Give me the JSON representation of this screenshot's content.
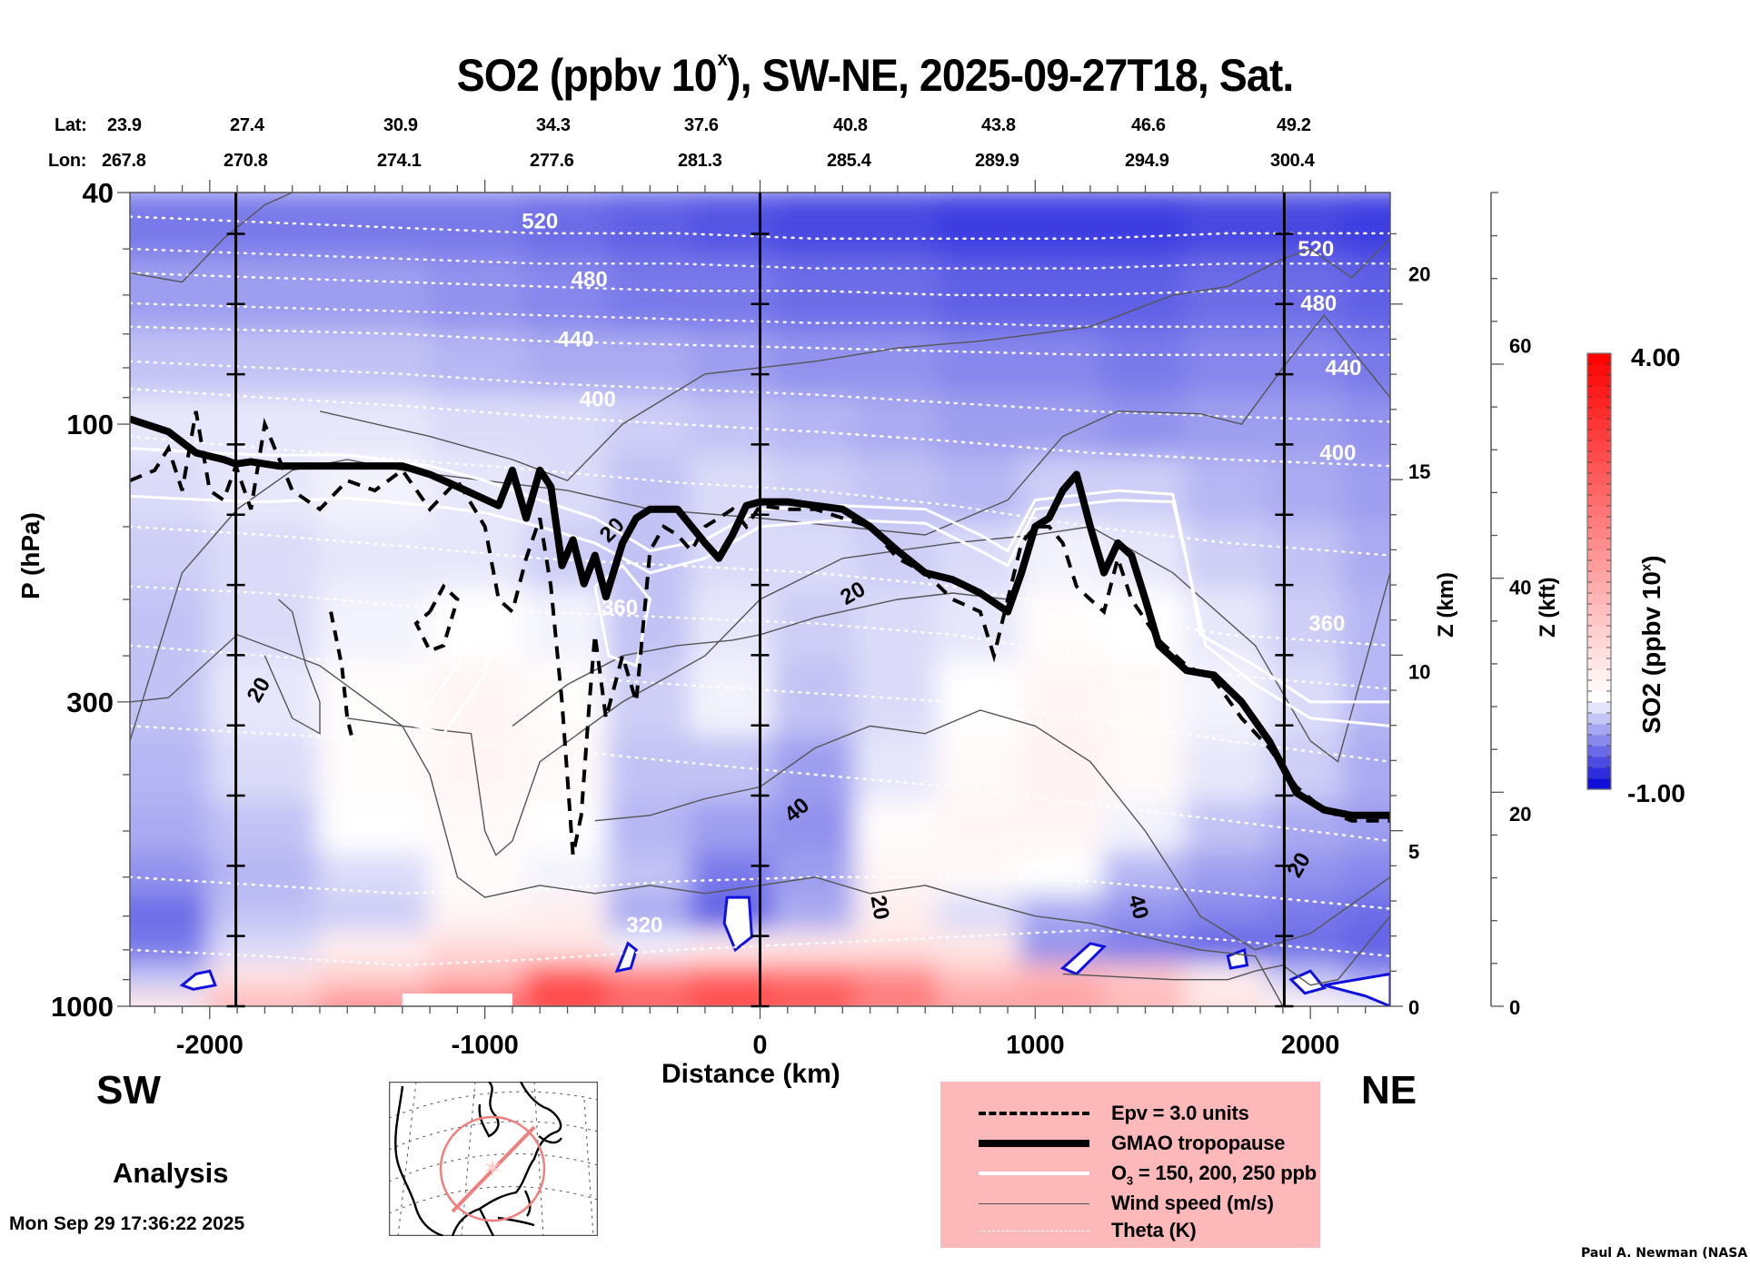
{
  "header": {
    "title_main": "SO2 (ppbv 10",
    "title_sup": "x",
    "title_rest": "), SW-NE, 2025-09-27T18, Sat.",
    "lat_label": "Lat:",
    "lon_label": "Lon:",
    "lat_values": [
      "23.9",
      "27.4",
      "30.9",
      "34.3",
      "37.6",
      "40.8",
      "43.8",
      "46.6",
      "49.2"
    ],
    "lon_values": [
      "267.8",
      "270.8",
      "274.1",
      "277.6",
      "281.3",
      "285.4",
      "289.9",
      "294.9",
      "300.4"
    ]
  },
  "labels": {
    "sw": "SW",
    "ne": "NE",
    "analysis": "Analysis",
    "timestamp": "Mon Sep 29 17:36:22 2025",
    "credit": "Paul A. Newman (NASA"
  },
  "legend": {
    "items": [
      {
        "label": "Epv = 3.0 units",
        "style": "dashed-thick-black"
      },
      {
        "label": "GMAO tropopause",
        "style": "solid-heavy-black"
      },
      {
        "label_main": "O",
        "label_sub": "3",
        "label_rest": " = 150, 200, 250 ppb",
        "style": "solid-white"
      },
      {
        "label": "Wind speed (m/s)",
        "style": "solid-thin-gray"
      },
      {
        "label": "Theta (K)",
        "style": "dotted-white"
      }
    ],
    "background": "#fdb9ba"
  },
  "colors": {
    "low": "#0000e0",
    "mid": "#ffffff",
    "high": "#ff0000",
    "wind": "#555555",
    "tropopause": "#000000",
    "ozone": "#ffffff",
    "theta": "#ffffff",
    "map_track": "#f08080"
  },
  "chart_data": {
    "type": "heatmap",
    "title": "SO2 (ppbv 10^x), SW-NE, 2025-09-27T18, Sat.",
    "xlabel": "Distance (km)",
    "ylabel": "P (hPa)",
    "y2label": "Z (km)",
    "y3label": "Z (kft)",
    "xlim": [
      -2290,
      2290
    ],
    "ylim": [
      1000,
      40
    ],
    "yscale": "log",
    "grid": false,
    "x_ticks": [
      -2000,
      -1000,
      0,
      1000,
      2000
    ],
    "x_tick_labels": [
      "-2000",
      "-1000",
      "0",
      "1000",
      "2000"
    ],
    "y_ticks": [
      40,
      100,
      300,
      1000
    ],
    "y_tick_labels": [
      "40",
      "100",
      "300",
      "1000"
    ],
    "z_km_ticks": [
      0,
      5,
      10,
      15,
      20
    ],
    "z_km_pressure": [
      1000,
      540,
      265,
      120,
      55
    ],
    "z_kft_ticks": [
      0,
      20,
      40,
      60
    ],
    "z_kft_pressure": [
      1000,
      465,
      190,
      73
    ],
    "reference_lines_km": [
      -1905,
      0,
      1905
    ],
    "colorbar": {
      "label_main": "SO2 (ppbv 10",
      "label_sup": "x",
      "label_rest": ")",
      "min": -1.0,
      "max": 4.0,
      "min_label": "-1.00",
      "max_label": "4.00",
      "levels": 40,
      "placement": "right"
    },
    "so2_field": {
      "x": [
        -2200,
        -1800,
        -1400,
        -1000,
        -700,
        -400,
        -100,
        200,
        500,
        800,
        1100,
        1400,
        1700,
        2000,
        2250
      ],
      "p": [
        45,
        60,
        80,
        100,
        130,
        170,
        220,
        300,
        400,
        500,
        600,
        700,
        800,
        900,
        1000
      ],
      "values": [
        [
          -0.5,
          -0.5,
          -0.5,
          -0.5,
          -0.55,
          -0.6,
          -0.65,
          -0.7,
          -0.7,
          -0.75,
          -0.75,
          -0.75,
          -0.7,
          -0.7,
          -0.75
        ],
        [
          -0.35,
          -0.35,
          -0.35,
          -0.4,
          -0.45,
          -0.5,
          -0.5,
          -0.55,
          -0.55,
          -0.6,
          -0.6,
          -0.6,
          -0.55,
          -0.55,
          -0.6
        ],
        [
          -0.2,
          -0.2,
          -0.2,
          -0.25,
          -0.3,
          -0.3,
          -0.35,
          -0.4,
          -0.4,
          -0.45,
          -0.45,
          -0.5,
          -0.45,
          -0.45,
          -0.5
        ],
        [
          -0.05,
          -0.05,
          -0.05,
          -0.1,
          -0.1,
          -0.15,
          -0.2,
          -0.25,
          -0.3,
          -0.35,
          -0.35,
          -0.4,
          -0.35,
          -0.35,
          -0.4
        ],
        [
          -0.1,
          -0.05,
          0.0,
          -0.05,
          -0.1,
          -0.2,
          -0.1,
          -0.15,
          -0.2,
          -0.25,
          -0.15,
          -0.15,
          -0.25,
          -0.3,
          -0.35
        ],
        [
          -0.15,
          -0.1,
          -0.05,
          -0.05,
          -0.15,
          -0.2,
          -0.1,
          -0.1,
          -0.15,
          -0.1,
          0.0,
          -0.05,
          -0.15,
          -0.2,
          -0.3
        ],
        [
          -0.2,
          -0.1,
          0.0,
          0.05,
          0.0,
          -0.2,
          -0.05,
          -0.15,
          -0.1,
          -0.05,
          0.1,
          0.05,
          -0.05,
          -0.15,
          -0.25
        ],
        [
          -0.2,
          -0.05,
          0.1,
          0.2,
          0.1,
          -0.15,
          0.0,
          -0.2,
          -0.1,
          0.05,
          0.2,
          0.15,
          0.0,
          -0.1,
          -0.25
        ],
        [
          -0.25,
          -0.1,
          0.1,
          0.2,
          0.15,
          -0.2,
          -0.2,
          -0.35,
          -0.05,
          0.15,
          0.25,
          0.15,
          -0.05,
          -0.15,
          -0.3
        ],
        [
          -0.3,
          -0.2,
          0.05,
          0.15,
          0.05,
          -0.25,
          -0.35,
          -0.4,
          0.1,
          0.2,
          0.2,
          0.0,
          -0.2,
          -0.3,
          -0.35
        ],
        [
          -0.4,
          -0.25,
          -0.1,
          0.1,
          0.0,
          -0.2,
          -0.5,
          -0.35,
          0.2,
          0.15,
          0.05,
          -0.25,
          -0.35,
          -0.4,
          -0.45
        ],
        [
          -0.55,
          -0.2,
          -0.15,
          0.2,
          0.3,
          -0.3,
          -0.6,
          -0.3,
          0.3,
          -0.1,
          -0.3,
          -0.4,
          -0.45,
          -0.5,
          -0.55
        ],
        [
          -0.5,
          -0.1,
          0.3,
          0.6,
          0.5,
          0.0,
          0.3,
          0.4,
          0.5,
          0.4,
          -0.4,
          -0.5,
          -0.6,
          -0.55,
          -0.6
        ],
        [
          -0.2,
          0.5,
          0.8,
          1.2,
          2.6,
          2.0,
          2.4,
          2.2,
          1.8,
          1.0,
          1.2,
          0.9,
          0.3,
          -0.2,
          -0.35
        ],
        [
          0.4,
          1.2,
          1.8,
          2.4,
          3.0,
          2.6,
          3.0,
          2.8,
          2.2,
          1.6,
          1.6,
          1.2,
          0.5,
          0.2,
          0.0
        ]
      ]
    },
    "tropopause": {
      "x": [
        -2290,
        -2150,
        -2050,
        -1950,
        -1905,
        -1850,
        -1750,
        -1500,
        -1300,
        -1200,
        -1100,
        -950,
        -900,
        -850,
        -800,
        -760,
        -720,
        -680,
        -640,
        -600,
        -560,
        -500,
        -450,
        -400,
        -300,
        -200,
        -150,
        -100,
        -50,
        0,
        100,
        200,
        300,
        400,
        500,
        600,
        700,
        800,
        900,
        950,
        1000,
        1050,
        1100,
        1150,
        1200,
        1250,
        1300,
        1350,
        1400,
        1450,
        1550,
        1650,
        1750,
        1850,
        1950,
        2050,
        2150,
        2290
      ],
      "p": [
        98,
        103,
        112,
        115,
        117,
        116,
        118,
        118,
        118,
        122,
        128,
        138,
        120,
        145,
        120,
        128,
        175,
        158,
        188,
        168,
        198,
        160,
        145,
        140,
        140,
        160,
        170,
        155,
        138,
        136,
        136,
        138,
        140,
        150,
        165,
        180,
        185,
        195,
        210,
        180,
        150,
        145,
        130,
        122,
        150,
        180,
        160,
        168,
        200,
        240,
        265,
        270,
        300,
        350,
        430,
        460,
        470,
        470
      ]
    },
    "epv_3": {
      "x": [
        -2290,
        -2200,
        -2150,
        -2100,
        -2050,
        -2000,
        -1950,
        -1905,
        -1850,
        -1800,
        -1700,
        -1600,
        -1500,
        -1400,
        -1300,
        -1200,
        -1100,
        -1000,
        -950,
        -900,
        -850,
        -800,
        -760,
        -720,
        -680,
        -650,
        -620,
        -600,
        -560,
        -500,
        -450,
        -400,
        -350,
        -300,
        -250,
        -200,
        -150,
        -100,
        -50,
        0,
        100,
        200,
        300,
        400,
        500,
        600,
        700,
        800,
        850,
        900,
        950,
        1000,
        1050,
        1100,
        1150,
        1200,
        1250,
        1300,
        1350,
        1450,
        1550,
        1650,
        1750,
        1850,
        1950,
        2050,
        2150,
        2290
      ],
      "p": [
        125,
        120,
        110,
        130,
        95,
        130,
        135,
        118,
        140,
        100,
        130,
        140,
        125,
        130,
        120,
        140,
        125,
        150,
        200,
        210,
        170,
        145,
        190,
        300,
        550,
        470,
        300,
        230,
        320,
        250,
        300,
        165,
        150,
        155,
        165,
        150,
        145,
        140,
        150,
        138,
        140,
        140,
        145,
        150,
        170,
        180,
        200,
        210,
        250,
        200,
        160,
        150,
        150,
        160,
        190,
        200,
        210,
        170,
        200,
        235,
        260,
        275,
        320,
        360,
        420,
        460,
        480,
        480
      ]
    },
    "theta_levels": [
      {
        "label": "520",
        "p": [
          44,
          45,
          46,
          47,
          47,
          48,
          48,
          48,
          47,
          47
        ]
      },
      {
        "label": "480",
        "p": [
          55,
          56,
          57,
          58,
          59,
          59,
          60,
          60,
          59,
          59
        ]
      },
      {
        "label": "440",
        "p": [
          68,
          69,
          70,
          72,
          73,
          74,
          75,
          76,
          76,
          76
        ]
      },
      {
        "label": "400",
        "p": [
          87,
          90,
          93,
          97,
          100,
          103,
          107,
          112,
          115,
          118
        ]
      },
      {
        "label": "360",
        "p": [
          150,
          155,
          162,
          170,
          175,
          180,
          190,
          210,
          230,
          240
        ]
      },
      {
        "label": "320",
        "p": [
          600,
          620,
          640,
          630,
          610,
          600,
          600,
          610,
          640,
          680
        ]
      }
    ],
    "theta_x": [
      -2290,
      -1800,
      -1300,
      -800,
      -300,
      200,
      700,
      1200,
      1700,
      2290
    ],
    "wind_speed_labels": [
      "20",
      "20",
      "20",
      "40",
      "20",
      "40",
      "20"
    ],
    "ozone_levels_ppb": [
      150,
      200,
      250
    ],
    "distance_labels": {
      "xlabel": "Distance (km)"
    }
  }
}
